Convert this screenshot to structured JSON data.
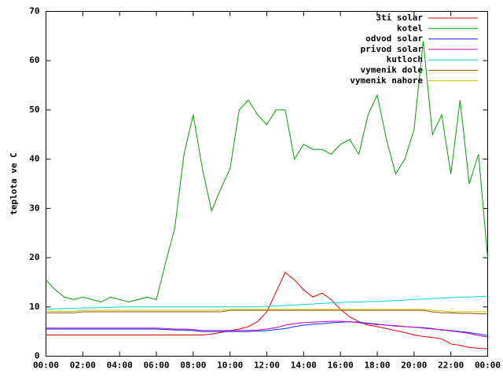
{
  "chart_data": {
    "type": "line",
    "ylabel": "teplota ve C",
    "x": [
      0,
      0.5,
      1,
      1.5,
      2,
      2.5,
      3,
      3.5,
      4,
      4.5,
      5,
      5.5,
      6,
      6.5,
      7,
      7.5,
      8,
      8.5,
      9,
      9.5,
      10,
      10.5,
      11,
      11.5,
      12,
      12.5,
      13,
      13.5,
      14,
      14.5,
      15,
      15.5,
      16,
      16.5,
      17,
      17.5,
      18,
      18.5,
      19,
      19.5,
      20,
      20.5,
      21,
      21.5,
      22,
      22.5,
      23,
      23.5,
      24
    ],
    "series": [
      {
        "name": "3ti solar",
        "color": "#e00000",
        "values": [
          4.3,
          4.3,
          4.3,
          4.3,
          4.3,
          4.3,
          4.3,
          4.3,
          4.3,
          4.3,
          4.3,
          4.3,
          4.3,
          4.3,
          4.3,
          4.3,
          4.3,
          4.3,
          4.5,
          4.8,
          5.2,
          5.5,
          6,
          7,
          9,
          13,
          17,
          15.5,
          13.5,
          12,
          12.8,
          11.5,
          9.5,
          8,
          7,
          6.3,
          6,
          5.6,
          5.2,
          4.8,
          4.3,
          4,
          3.8,
          3.5,
          2.5,
          2.2,
          1.8,
          1.6,
          1.5
        ]
      },
      {
        "name": "kotel",
        "color": "#00a000",
        "values": [
          15.5,
          13.5,
          12,
          11.5,
          12,
          11.5,
          11,
          12,
          11.5,
          11,
          11.5,
          12,
          11.5,
          19,
          26,
          41,
          49,
          38,
          29.5,
          34,
          38,
          50,
          52,
          49,
          47,
          50,
          50,
          40,
          43,
          42,
          42,
          41,
          43,
          44,
          41,
          49,
          53,
          44,
          37,
          40,
          46,
          64,
          45,
          49,
          37,
          52,
          35,
          41,
          20
        ]
      },
      {
        "name": "odvod solar",
        "color": "#1030ff",
        "values": [
          5.5,
          5.5,
          5.5,
          5.5,
          5.5,
          5.5,
          5.5,
          5.5,
          5.5,
          5.5,
          5.5,
          5.5,
          5.5,
          5.4,
          5.3,
          5.3,
          5.2,
          5,
          5,
          5,
          5,
          5,
          5,
          5.1,
          5.2,
          5.4,
          5.6,
          6,
          6.3,
          6.5,
          6.6,
          6.8,
          6.9,
          7,
          6.9,
          6.7,
          6.5,
          6.3,
          6.2,
          6,
          5.9,
          5.8,
          5.6,
          5.3,
          5.2,
          5,
          4.8,
          4.5,
          4.2
        ]
      },
      {
        "name": "privod solar",
        "color": "#c000c0",
        "values": [
          5.7,
          5.7,
          5.7,
          5.7,
          5.7,
          5.7,
          5.7,
          5.7,
          5.7,
          5.7,
          5.7,
          5.7,
          5.7,
          5.6,
          5.5,
          5.5,
          5.4,
          5.2,
          5.2,
          5.2,
          5.2,
          5.2,
          5.2,
          5.3,
          5.5,
          5.8,
          6.3,
          6.6,
          6.8,
          6.9,
          7,
          7.1,
          7.1,
          7,
          6.8,
          6.6,
          6.4,
          6.3,
          6.1,
          6,
          5.9,
          5.7,
          5.5,
          5.4,
          5.1,
          4.9,
          4.6,
          4.2,
          3.9
        ]
      },
      {
        "name": "kutloch",
        "color": "#00d8d8",
        "values": [
          9.5,
          9.6,
          9.7,
          9.7,
          9.8,
          9.8,
          9.9,
          9.9,
          10,
          10,
          10,
          10,
          10,
          10,
          10,
          10,
          10,
          10,
          10,
          10,
          10,
          10,
          10,
          10,
          10.1,
          10.2,
          10.3,
          10.4,
          10.5,
          10.6,
          10.7,
          10.8,
          10.9,
          11,
          11,
          11.1,
          11.1,
          11.2,
          11.3,
          11.4,
          11.5,
          11.6,
          11.7,
          11.8,
          11.9,
          12,
          12,
          12.1,
          12.2
        ]
      },
      {
        "name": "vymenik dole",
        "color": "#a05000",
        "values": [
          8.8,
          8.8,
          8.8,
          8.8,
          9,
          9,
          9,
          9,
          9,
          9,
          9,
          9,
          9,
          9,
          9,
          9,
          9,
          9,
          9,
          9,
          9.3,
          9.3,
          9.3,
          9.3,
          9.3,
          9.3,
          9.3,
          9.3,
          9.3,
          9.3,
          9.3,
          9.3,
          9.3,
          9.3,
          9.3,
          9.3,
          9.3,
          9.3,
          9.3,
          9.3,
          9.3,
          9.3,
          9,
          8.8,
          8.8,
          8.7,
          8.7,
          8.6,
          8.6
        ]
      },
      {
        "name": "vymenik nahore",
        "color": "#c8c000",
        "values": [
          9.1,
          9.1,
          9.1,
          9.1,
          9.3,
          9.3,
          9.3,
          9.3,
          9.3,
          9.3,
          9.3,
          9.3,
          9.3,
          9.3,
          9.3,
          9.3,
          9.3,
          9.3,
          9.3,
          9.3,
          9.5,
          9.5,
          9.5,
          9.5,
          9.5,
          9.5,
          9.5,
          9.5,
          9.5,
          9.5,
          9.5,
          9.5,
          9.5,
          9.5,
          9.5,
          9.5,
          9.5,
          9.5,
          9.5,
          9.5,
          9.5,
          9.5,
          9.3,
          9.2,
          9,
          9,
          9,
          9,
          9
        ]
      }
    ],
    "xlim": [
      0,
      24
    ],
    "xticks": [
      {
        "value": 0,
        "label": "00:00"
      },
      {
        "value": 2,
        "label": "02:00"
      },
      {
        "value": 4,
        "label": "04:00"
      },
      {
        "value": 6,
        "label": "06:00"
      },
      {
        "value": 8,
        "label": "08:00"
      },
      {
        "value": 10,
        "label": "10:00"
      },
      {
        "value": 12,
        "label": "12:00"
      },
      {
        "value": 14,
        "label": "14:00"
      },
      {
        "value": 16,
        "label": "16:00"
      },
      {
        "value": 18,
        "label": "18:00"
      },
      {
        "value": 20,
        "label": "20:00"
      },
      {
        "value": 22,
        "label": "22:00"
      },
      {
        "value": 24,
        "label": "00:00"
      }
    ],
    "ylim": [
      0,
      70
    ],
    "yticks": [
      0,
      10,
      20,
      30,
      40,
      50,
      60,
      70
    ],
    "legend": "top-right"
  }
}
